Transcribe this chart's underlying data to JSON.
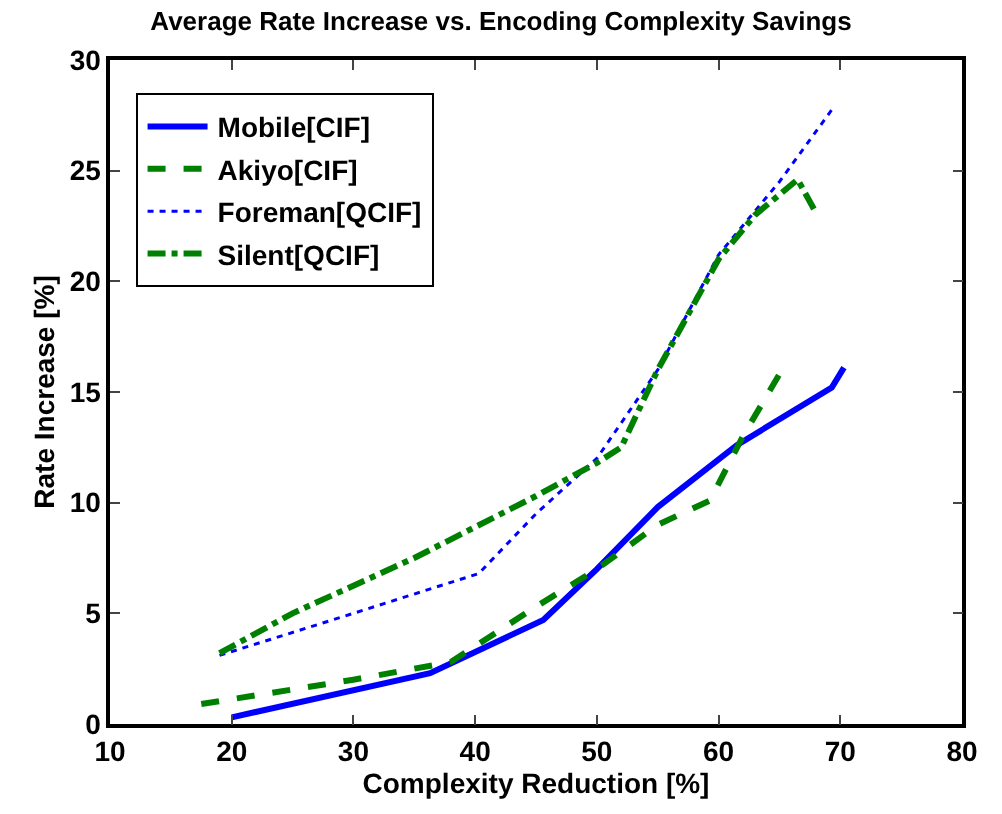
{
  "chart_data": {
    "type": "line",
    "title": "Average Rate Increase vs. Encoding Complexity Savings",
    "xlabel": "Complexity Reduction [%]",
    "ylabel": "Rate Increase [%]",
    "xlim": [
      10,
      80
    ],
    "xticks": [
      10,
      20,
      30,
      40,
      50,
      60,
      70,
      80
    ],
    "ylim": [
      0,
      30
    ],
    "yticks": [
      0,
      5,
      10,
      15,
      20,
      25,
      30
    ],
    "grid": false,
    "legend": "top left",
    "marker": "none",
    "series": [
      {
        "name": "Mobile[CIF]",
        "color": "#0000ff",
        "line_style": "solid",
        "x": [
          20,
          36.3,
          45.6,
          50,
          55,
          61.5,
          69.3,
          70.3
        ],
        "values": [
          0.3,
          2.3,
          4.7,
          7,
          9.8,
          12.6,
          15.2,
          16.1
        ]
      },
      {
        "name": "Akiyo[CIF]",
        "color": "#008000",
        "line_style": "dashed",
        "x": [
          17.5,
          30,
          38,
          45,
          50,
          55,
          59.3,
          62,
          65
        ],
        "values": [
          0.9,
          2,
          2.8,
          5.3,
          7,
          9,
          10.1,
          13,
          15.8
        ]
      },
      {
        "name": "Foreman[QCIF]",
        "color": "#0000ff",
        "line_style": "dotted",
        "x": [
          19,
          30,
          40.3,
          45,
          50,
          55,
          60,
          65,
          69.5
        ],
        "values": [
          3.1,
          5,
          6.8,
          9.5,
          12,
          16,
          21.2,
          24.5,
          27.9
        ]
      },
      {
        "name": "Silent[QCIF]",
        "color": "#008000",
        "line_style": "dashdot",
        "x": [
          19,
          25,
          35,
          45,
          50,
          52,
          55,
          60,
          63,
          66.5,
          68
        ],
        "values": [
          3.2,
          5,
          7.5,
          10.3,
          11.8,
          12.5,
          16,
          21,
          23,
          24.6,
          23.1
        ]
      }
    ]
  }
}
